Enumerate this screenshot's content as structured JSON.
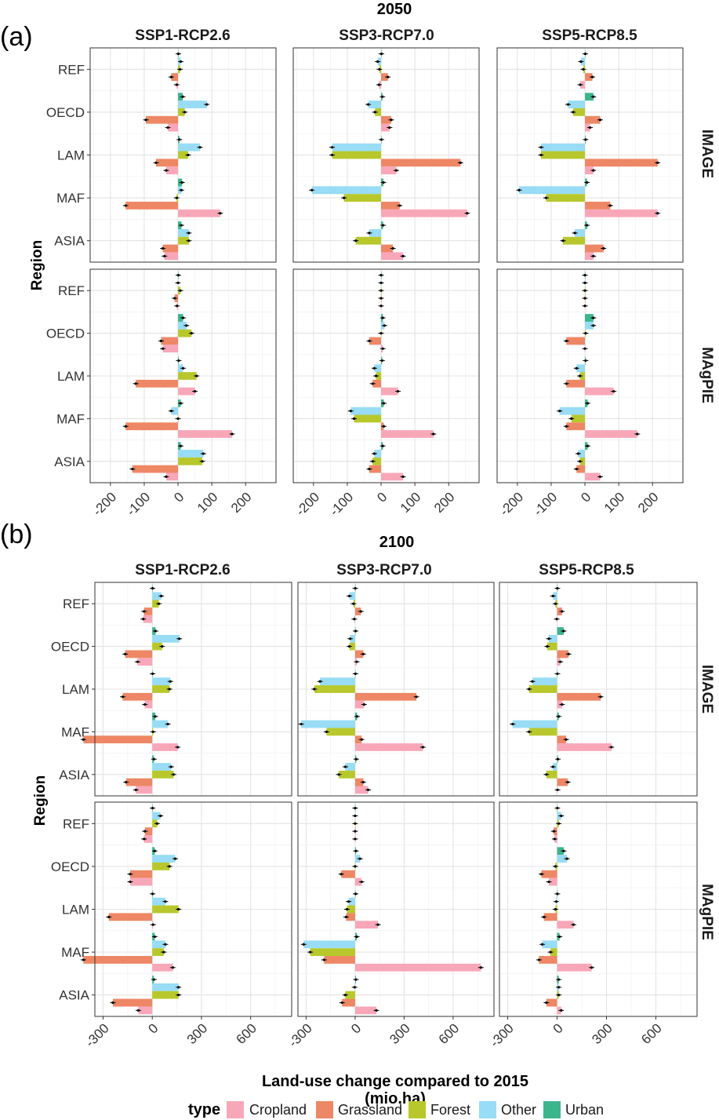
{
  "panel_labels": {
    "a": "(a)",
    "b": "(b)"
  },
  "axis_labels": {
    "y": "Region",
    "x_line1": "Land-use change compared to 2015",
    "x_line2": "(mio.ha)"
  },
  "legend": {
    "title": "type",
    "items": [
      {
        "label": "Cropland",
        "color": "#f8a7b9"
      },
      {
        "label": "Grassland",
        "color": "#ee8765"
      },
      {
        "label": "Forest",
        "color": "#b8c82c"
      },
      {
        "label": "Other",
        "color": "#98dcf5"
      },
      {
        "label": "Urban",
        "color": "#3cb58c"
      }
    ]
  },
  "chart_data": [
    {
      "type": "bar",
      "orientation": "horizontal",
      "grouped": true,
      "title": "2050",
      "facet_columns": [
        "SSP1-RCP2.6",
        "SSP3-RCP7.0",
        "SSP5-RCP8.5"
      ],
      "facet_rows": [
        "IMAGE",
        "MAgPIE"
      ],
      "regions": [
        "REF",
        "OECD",
        "LAM",
        "MAF",
        "ASIA"
      ],
      "series_order": [
        "Urban",
        "Other",
        "Forest",
        "Grassland",
        "Cropland"
      ],
      "xlim": [
        -260,
        290
      ],
      "x_ticks": [
        -200,
        -100,
        0,
        100,
        200
      ],
      "grid": true,
      "panels": {
        "IMAGE": {
          "SSP1-RCP2.6": {
            "REF": {
              "Urban": 1,
              "Other": 8,
              "Forest": 6,
              "Grassland": -20,
              "Cropland": -4
            },
            "OECD": {
              "Urban": 14,
              "Other": 85,
              "Forest": 20,
              "Grassland": -95,
              "Cropland": -30
            },
            "LAM": {
              "Urban": 4,
              "Other": 65,
              "Forest": 30,
              "Grassland": -65,
              "Cropland": -35
            },
            "MAF": {
              "Urban": 12,
              "Other": 10,
              "Forest": -4,
              "Grassland": -155,
              "Cropland": 125
            },
            "ASIA": {
              "Urban": 10,
              "Other": 32,
              "Forest": 32,
              "Grassland": -45,
              "Cropland": -40
            }
          },
          "SSP3-RCP7.0": {
            "REF": {
              "Urban": 1,
              "Other": -10,
              "Forest": -5,
              "Grassland": 20,
              "Cropland": -6
            },
            "OECD": {
              "Urban": 4,
              "Other": -38,
              "Forest": -18,
              "Grassland": 30,
              "Cropland": 25
            },
            "LAM": {
              "Urban": 1,
              "Other": -145,
              "Forest": -145,
              "Grassland": 235,
              "Cropland": 45
            },
            "MAF": {
              "Urban": 7,
              "Other": -205,
              "Forest": -110,
              "Grassland": 55,
              "Cropland": 255
            },
            "ASIA": {
              "Urban": 6,
              "Other": -35,
              "Forest": -75,
              "Grassland": 35,
              "Cropland": 65
            }
          },
          "SSP5-RCP8.5": {
            "REF": {
              "Urban": 1,
              "Other": -12,
              "Forest": -5,
              "Grassland": 22,
              "Cropland": -14
            },
            "OECD": {
              "Urban": 25,
              "Other": -50,
              "Forest": -35,
              "Grassland": 45,
              "Cropland": 15
            },
            "LAM": {
              "Urban": 2,
              "Other": -130,
              "Forest": -130,
              "Grassland": 215,
              "Cropland": 25
            },
            "MAF": {
              "Urban": 6,
              "Other": -195,
              "Forest": -115,
              "Grassland": 75,
              "Cropland": 215
            },
            "ASIA": {
              "Urban": 6,
              "Other": -30,
              "Forest": -65,
              "Grassland": 55,
              "Cropland": 25
            }
          }
        },
        "MAgPIE": {
          "SSP1-RCP2.6": {
            "REF": {
              "Urban": 1,
              "Other": 0,
              "Forest": 7,
              "Grassland": -10,
              "Cropland": -3
            },
            "OECD": {
              "Urban": 15,
              "Other": 25,
              "Forest": 40,
              "Grassland": -50,
              "Cropland": -45
            },
            "LAM": {
              "Urban": 2,
              "Other": 15,
              "Forest": 55,
              "Grassland": -125,
              "Cropland": 50
            },
            "MAF": {
              "Urban": 8,
              "Other": -20,
              "Forest": 0,
              "Grassland": -155,
              "Cropland": 160
            },
            "ASIA": {
              "Urban": 8,
              "Other": 75,
              "Forest": 72,
              "Grassland": -135,
              "Cropland": -35
            }
          },
          "SSP3-RCP7.0": {
            "REF": {
              "Urban": 0,
              "Other": 0,
              "Forest": 0,
              "Grassland": 0,
              "Cropland": 0
            },
            "OECD": {
              "Urban": 5,
              "Other": 10,
              "Forest": 0,
              "Grassland": -35,
              "Cropland": 5
            },
            "LAM": {
              "Urban": 3,
              "Other": -20,
              "Forest": -15,
              "Grassland": -25,
              "Cropland": 50
            },
            "MAF": {
              "Urban": 8,
              "Other": -90,
              "Forest": -80,
              "Grassland": 8,
              "Cropland": 155
            },
            "ASIA": {
              "Urban": 5,
              "Other": -20,
              "Forest": -25,
              "Grassland": -35,
              "Cropland": 65
            }
          },
          "SSP5-RCP8.5": {
            "REF": {
              "Urban": 0,
              "Other": 0,
              "Forest": 0,
              "Grassland": 0,
              "Cropland": 0
            },
            "OECD": {
              "Urban": 25,
              "Other": 25,
              "Forest": 2,
              "Grassland": -55,
              "Cropland": 0
            },
            "LAM": {
              "Urban": 2,
              "Other": -25,
              "Forest": -15,
              "Grassland": -55,
              "Cropland": 85
            },
            "MAF": {
              "Urban": 8,
              "Other": -75,
              "Forest": -40,
              "Grassland": -55,
              "Cropland": 155
            },
            "ASIA": {
              "Urban": 8,
              "Other": -20,
              "Forest": -15,
              "Grassland": -25,
              "Cropland": 45
            }
          }
        }
      }
    },
    {
      "type": "bar",
      "orientation": "horizontal",
      "grouped": true,
      "title": "2100",
      "facet_columns": [
        "SSP1-RCP2.6",
        "SSP3-RCP7.0",
        "SSP5-RCP8.5"
      ],
      "facet_rows": [
        "IMAGE",
        "MAgPIE"
      ],
      "regions": [
        "REF",
        "OECD",
        "LAM",
        "MAF",
        "ASIA"
      ],
      "series_order": [
        "Urban",
        "Other",
        "Forest",
        "Grassland",
        "Cropland"
      ],
      "xlim": [
        -350,
        850
      ],
      "x_ticks": [
        -300,
        0,
        300,
        600
      ],
      "grid": true,
      "panels": {
        "IMAGE": {
          "SSP1-RCP2.6": {
            "REF": {
              "Urban": 2,
              "Other": 55,
              "Forest": 40,
              "Grassland": -50,
              "Cropland": -55
            },
            "OECD": {
              "Urban": 20,
              "Other": 165,
              "Forest": 60,
              "Grassland": -165,
              "Cropland": -90
            },
            "LAM": {
              "Urban": 2,
              "Other": 110,
              "Forest": 105,
              "Grassland": -180,
              "Cropland": -45
            },
            "MAF": {
              "Urban": 18,
              "Other": 95,
              "Forest": 5,
              "Grassland": -420,
              "Cropland": 155
            },
            "ASIA": {
              "Urban": 10,
              "Other": 115,
              "Forest": 130,
              "Grassland": -160,
              "Cropland": -100
            }
          },
          "SSP3-RCP7.0": {
            "REF": {
              "Urban": 1,
              "Other": -35,
              "Forest": -10,
              "Grassland": 35,
              "Cropland": -5
            },
            "OECD": {
              "Urban": 3,
              "Other": -30,
              "Forest": -35,
              "Grassland": 50,
              "Cropland": 10
            },
            "LAM": {
              "Urban": 2,
              "Other": -215,
              "Forest": -250,
              "Grassland": 375,
              "Cropland": 55
            },
            "MAF": {
              "Urban": 12,
              "Other": -330,
              "Forest": -175,
              "Grassland": 40,
              "Cropland": 415
            },
            "ASIA": {
              "Urban": 7,
              "Other": -60,
              "Forest": -100,
              "Grassland": 50,
              "Cropland": 80
            }
          },
          "SSP5-RCP8.5": {
            "REF": {
              "Urban": 2,
              "Other": -25,
              "Forest": -10,
              "Grassland": 30,
              "Cropland": -2
            },
            "OECD": {
              "Urban": 40,
              "Other": -50,
              "Forest": -60,
              "Grassland": 70,
              "Cropland": 20
            },
            "LAM": {
              "Urban": 2,
              "Other": -150,
              "Forest": -170,
              "Grassland": 265,
              "Cropland": 30
            },
            "MAF": {
              "Urban": 10,
              "Other": -270,
              "Forest": -170,
              "Grassland": 55,
              "Cropland": 330
            },
            "ASIA": {
              "Urban": 5,
              "Other": -25,
              "Forest": -65,
              "Grassland": 65,
              "Cropland": 3
            }
          }
        },
        "MAgPIE": {
          "SSP1-RCP2.6": {
            "REF": {
              "Urban": 2,
              "Other": 50,
              "Forest": 30,
              "Grassland": -45,
              "Cropland": -50
            },
            "OECD": {
              "Urban": 15,
              "Other": 140,
              "Forest": 105,
              "Grassland": -135,
              "Cropland": -135
            },
            "LAM": {
              "Urban": 2,
              "Other": 80,
              "Forest": 160,
              "Grassland": -265,
              "Cropland": 5
            },
            "MAF": {
              "Urban": 15,
              "Other": 80,
              "Forest": 70,
              "Grassland": -420,
              "Cropland": 125
            },
            "ASIA": {
              "Urban": 10,
              "Other": 160,
              "Forest": 160,
              "Grassland": -240,
              "Cropland": -85
            }
          },
          "SSP3-RCP7.0": {
            "REF": {
              "Urban": 0,
              "Other": 0,
              "Forest": 0,
              "Grassland": 0,
              "Cropland": 0
            },
            "OECD": {
              "Urban": 5,
              "Other": 30,
              "Forest": 0,
              "Grassland": -85,
              "Cropland": 40
            },
            "LAM": {
              "Urban": 3,
              "Other": -40,
              "Forest": -50,
              "Grassland": -55,
              "Cropland": 140
            },
            "MAF": {
              "Urban": 10,
              "Other": -315,
              "Forest": -275,
              "Grassland": -190,
              "Cropland": 770
            },
            "ASIA": {
              "Urban": 5,
              "Other": -3,
              "Forest": -60,
              "Grassland": -80,
              "Cropland": 130
            }
          },
          "SSP5-RCP8.5": {
            "REF": {
              "Urban": 2,
              "Other": 25,
              "Forest": 10,
              "Grassland": -20,
              "Cropland": -15
            },
            "OECD": {
              "Urban": 40,
              "Other": 60,
              "Forest": -10,
              "Grassland": -95,
              "Cropland": -50
            },
            "LAM": {
              "Urban": 2,
              "Other": -5,
              "Forest": -10,
              "Grassland": -80,
              "Cropland": 100
            },
            "MAF": {
              "Urban": 15,
              "Other": -90,
              "Forest": -40,
              "Grassland": -110,
              "Cropland": 210
            },
            "ASIA": {
              "Urban": 10,
              "Other": 10,
              "Forest": 10,
              "Grassland": -65,
              "Cropland": 25
            }
          }
        }
      }
    }
  ]
}
